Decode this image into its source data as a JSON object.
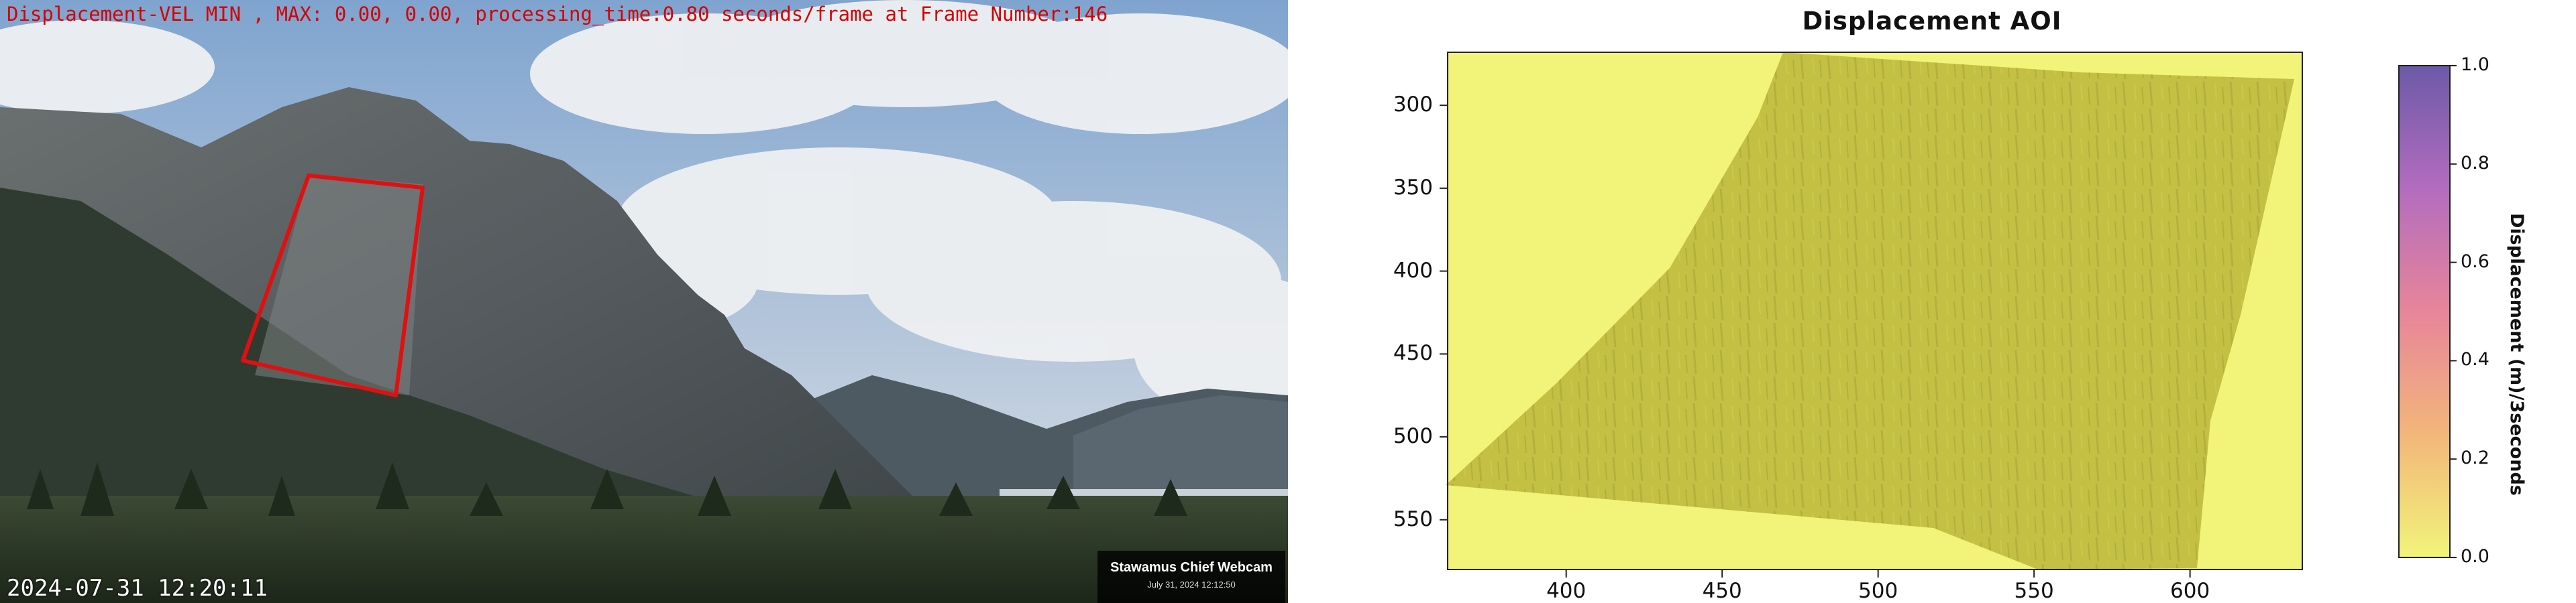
{
  "webcam": {
    "overlay_title": "Displacement-VEL MIN , MAX: 0.00, 0.00, processing_time:0.80 seconds/frame at Frame Number:146",
    "timestamp": "2024-07-31 12:20:11",
    "badge_title": "Stawamus Chief Webcam",
    "badge_date": "July 31, 2024 12:12:50",
    "colors": {
      "overlay_text": "#d40000",
      "aoi_outline": "#e01010"
    }
  },
  "plot": {
    "title": "Displacement AOI",
    "colorbar_label": "Displacement (m)/3seconds",
    "colors": {
      "low": "#f2f47a",
      "high": "#6c5aa8",
      "aoi_fill": "#c4c044"
    }
  },
  "chart_data": {
    "type": "heatmap",
    "title": "Displacement AOI",
    "xlabel": "",
    "ylabel": "",
    "x_ticks": [
      "400",
      "450",
      "500",
      "550",
      "600"
    ],
    "y_ticks": [
      "300",
      "350",
      "400",
      "450",
      "500",
      "550"
    ],
    "xlim": [
      362,
      636
    ],
    "ylim": [
      580,
      268
    ],
    "colorbar": {
      "label": "Displacement (m)/3seconds",
      "ticks": [
        "0.0",
        "0.2",
        "0.4",
        "0.6",
        "0.8",
        "1.0"
      ],
      "range": [
        0.0,
        1.0
      ]
    },
    "min_value": 0.0,
    "max_value": 0.0
  }
}
